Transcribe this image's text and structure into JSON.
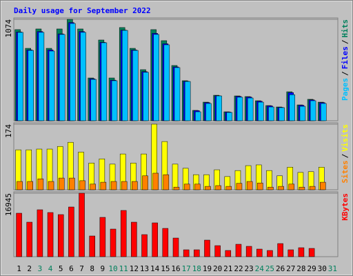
{
  "chart_data": {
    "type": "bar",
    "title": "Daily usage for September 2022",
    "legend_separator": "/",
    "categories": [
      1,
      2,
      3,
      4,
      5,
      6,
      7,
      8,
      9,
      10,
      11,
      12,
      13,
      14,
      15,
      16,
      17,
      18,
      19,
      20,
      21,
      22,
      23,
      24,
      25,
      26,
      27,
      28,
      29,
      30,
      31
    ],
    "category_colors": [
      "#000000",
      "#000000",
      "#00805c",
      "#00805c",
      "#000000",
      "#000000",
      "#000000",
      "#000000",
      "#000000",
      "#00805c",
      "#00805c",
      "#000000",
      "#000000",
      "#000000",
      "#000000",
      "#000000",
      "#00805c",
      "#00805c",
      "#000000",
      "#000000",
      "#000000",
      "#000000",
      "#000000",
      "#00805c",
      "#00805c",
      "#000000",
      "#000000",
      "#000000",
      "#000000",
      "#000000",
      "#00805c"
    ],
    "panels": [
      {
        "ylim": [
          0,
          1074
        ],
        "yticks": [
          1074
        ],
        "series": [
          {
            "name": "Hits",
            "color": "#00805c",
            "values": [
              965,
              767,
              972,
              767,
              972,
              1074,
              972,
              453,
              855,
              453,
              987,
              767,
              541,
              965,
              848,
              585,
              424,
              110,
              197,
              270,
              95,
              263,
              256,
              212,
              161,
              146,
              307,
              168,
              227,
              197,
              null
            ]
          },
          {
            "name": "Files",
            "color": "#0000ff",
            "values": [
              940,
              750,
              945,
              750,
              920,
              1040,
              945,
              445,
              830,
              430,
              960,
              750,
              520,
              925,
              815,
              570,
              418,
              107,
              192,
              265,
              92,
              258,
              251,
              207,
              157,
              142,
              298,
              164,
              221,
              192,
              null
            ]
          },
          {
            "name": "Pages",
            "color": "#00c0ff",
            "values": [
              936,
              745,
              936,
              738,
              914,
              1030,
              936,
              438,
              826,
              424,
              957,
              745,
              513,
              914,
              804,
              563,
              416,
              95,
              183,
              263,
              88,
              249,
              241,
              197,
              146,
              139,
              276,
              153,
              212,
              183,
              null
            ]
          }
        ]
      },
      {
        "ylim": [
          0,
          174
        ],
        "yticks": [
          174
        ],
        "series": [
          {
            "name": "Visits",
            "color": "#ffff00",
            "values": [
              106,
              106,
              108,
              108,
              115,
              126,
              100,
              71,
              82,
              68,
              95,
              71,
              95,
              174,
              128,
              68,
              57,
              40,
              40,
              53,
              35,
              51,
              64,
              66,
              51,
              37,
              60,
              46,
              48,
              60,
              null
            ]
          },
          {
            "name": "Sites",
            "color": "#ff8000",
            "values": [
              22,
              22,
              29,
              22,
              31,
              31,
              24,
              15,
              20,
              22,
              22,
              22,
              37,
              44,
              40,
              7,
              15,
              15,
              9,
              11,
              9,
              17,
              22,
              18,
              7,
              9,
              15,
              7,
              9,
              20,
              null
            ]
          }
        ]
      },
      {
        "ylim": [
          0,
          16945
        ],
        "yticks": [
          16945
        ],
        "series": [
          {
            "name": "KBytes",
            "color": "#ff0000",
            "values": [
              11604,
              9210,
              12525,
              11788,
              11235,
              13262,
              16945,
              5526,
              10499,
              7368,
              12341,
              9210,
              5894,
              9026,
              7552,
              4973,
              1842,
              1842,
              4421,
              2947,
              1658,
              3315,
              2763,
              2026,
              1658,
              3500,
              1842,
              2395,
              2210,
              null,
              null
            ]
          }
        ]
      }
    ]
  }
}
